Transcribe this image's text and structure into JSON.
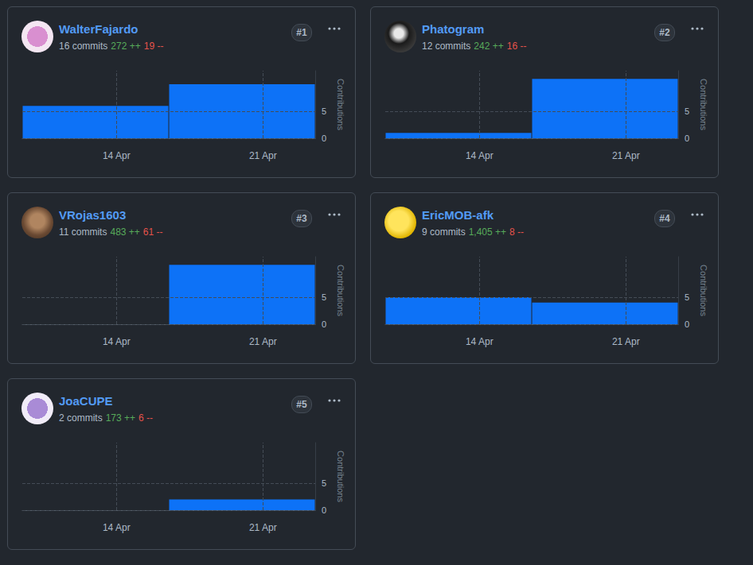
{
  "chart_data": [
    {
      "type": "bar",
      "title": "WalterFajardo",
      "annotations": {
        "rank": "#1",
        "commits": "16 commits",
        "additions": "272 ++",
        "deletions": "19 --"
      },
      "ylabel": "Contributions",
      "x": [
        13,
        20
      ],
      "values": [
        6,
        10
      ],
      "color": "#0d72f7",
      "xlim": [
        9.5,
        23.5
      ],
      "xticks": [
        {
          "value": 14,
          "label": "14 Apr"
        },
        {
          "value": 21,
          "label": "21 Apr"
        }
      ],
      "ylim": [
        0,
        12.5
      ],
      "yticks": [
        0,
        5
      ],
      "grid": true
    },
    {
      "type": "bar",
      "title": "Phatogram",
      "annotations": {
        "rank": "#2",
        "commits": "12 commits",
        "additions": "242 ++",
        "deletions": "16 --"
      },
      "ylabel": "Contributions",
      "x": [
        13,
        20
      ],
      "values": [
        1,
        11
      ],
      "color": "#0d72f7",
      "xlim": [
        9.5,
        23.5
      ],
      "xticks": [
        {
          "value": 14,
          "label": "14 Apr"
        },
        {
          "value": 21,
          "label": "21 Apr"
        }
      ],
      "ylim": [
        0,
        12.5
      ],
      "yticks": [
        0,
        5
      ],
      "grid": true
    },
    {
      "type": "bar",
      "title": "VRojas1603",
      "annotations": {
        "rank": "#3",
        "commits": "11 commits",
        "additions": "483 ++",
        "deletions": "61 --"
      },
      "ylabel": "Contributions",
      "x": [
        13,
        20
      ],
      "values": [
        0,
        11
      ],
      "color": "#0d72f7",
      "xlim": [
        9.5,
        23.5
      ],
      "xticks": [
        {
          "value": 14,
          "label": "14 Apr"
        },
        {
          "value": 21,
          "label": "21 Apr"
        }
      ],
      "ylim": [
        0,
        12.5
      ],
      "yticks": [
        0,
        5
      ],
      "grid": true
    },
    {
      "type": "bar",
      "title": "EricMOB-afk",
      "annotations": {
        "rank": "#4",
        "commits": "9 commits",
        "additions": "1,405 ++",
        "deletions": "8 --"
      },
      "ylabel": "Contributions",
      "x": [
        13,
        20
      ],
      "values": [
        5,
        4
      ],
      "color": "#0d72f7",
      "xlim": [
        9.5,
        23.5
      ],
      "xticks": [
        {
          "value": 14,
          "label": "14 Apr"
        },
        {
          "value": 21,
          "label": "21 Apr"
        }
      ],
      "ylim": [
        0,
        12.5
      ],
      "yticks": [
        0,
        5
      ],
      "grid": true
    },
    {
      "type": "bar",
      "title": "JoaCUPE",
      "annotations": {
        "rank": "#5",
        "commits": "2 commits",
        "additions": "173 ++",
        "deletions": "6 --"
      },
      "ylabel": "Contributions",
      "x": [
        13,
        20
      ],
      "values": [
        0,
        2
      ],
      "color": "#0d72f7",
      "xlim": [
        9.5,
        23.5
      ],
      "xticks": [
        {
          "value": 14,
          "label": "14 Apr"
        },
        {
          "value": 21,
          "label": "21 Apr"
        }
      ],
      "ylim": [
        0,
        12.5
      ],
      "yticks": [
        0,
        5
      ],
      "grid": true
    }
  ]
}
